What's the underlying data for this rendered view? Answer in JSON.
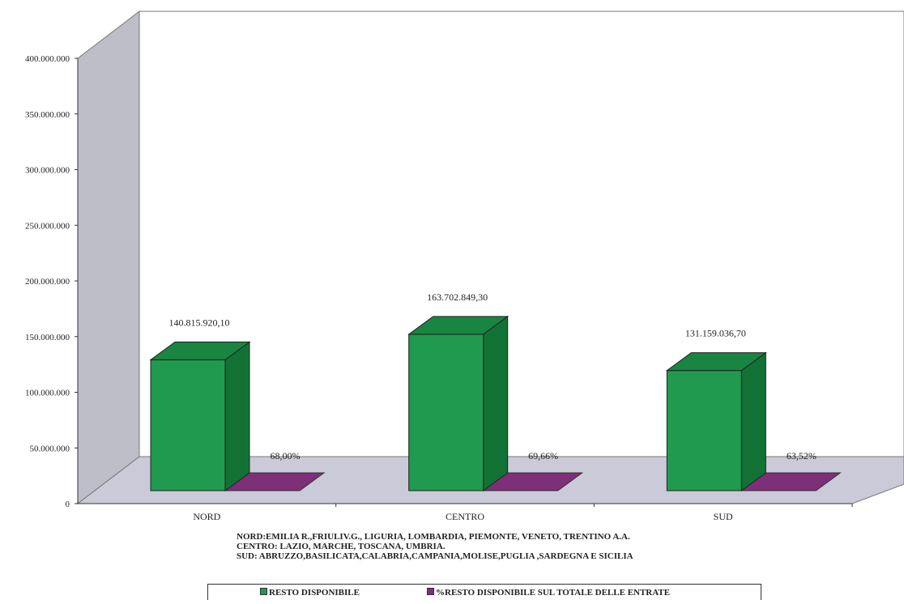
{
  "chart_data": {
    "type": "bar",
    "categories": [
      "NORD",
      "CENTRO",
      "SUD"
    ],
    "series": [
      {
        "name": "RESTO DISPONIBILE",
        "color": "#1f9a4e",
        "values": [
          140815920.1,
          163702849.3,
          131159036.7
        ],
        "labels": [
          "140.815.920,10",
          "163.702.849,30",
          "131.159.036,70"
        ]
      },
      {
        "name": "%RESTO DISPONIBILE SUL TOTALE DELLE ENTRATE",
        "color": "#7d2f78",
        "values": [
          68.0,
          69.66,
          63.52
        ],
        "labels": [
          "68,00%",
          "69,66%",
          "63,52%"
        ]
      }
    ],
    "ylim": [
      0,
      400000000
    ],
    "yticks": [
      {
        "value": 0,
        "label": "0"
      },
      {
        "value": 50000000,
        "label": "50.000.000"
      },
      {
        "value": 100000000,
        "label": "100.000.000"
      },
      {
        "value": 150000000,
        "label": "150.000.000"
      },
      {
        "value": 200000000,
        "label": "200.000.000"
      },
      {
        "value": 250000000,
        "label": "250.000.000"
      },
      {
        "value": 300000000,
        "label": "300.000.000"
      },
      {
        "value": 350000000,
        "label": "350.000.000"
      },
      {
        "value": 400000000,
        "label": "400.000.000"
      }
    ],
    "grid": false,
    "legend_position": "bottom",
    "notes": [
      "NORD:EMILIA R.,FRIULIV.G., LIGURIA, LOMBARDIA, PIEMONTE, VENETO, TRENTINO A.A.",
      "CENTRO: LAZIO, MARCHE, TOSCANA, UMBRIA.",
      "SUD: ABRUZZO,BASILICATA,CALABRIA,CAMPANIA,MOLISE,PUGLIA ,SARDEGNA E SICILIA"
    ]
  },
  "colors": {
    "left_wall": "#bdbec8",
    "floor": "#cbcad8",
    "bar_front": "#1f9a4e",
    "bar_top": "#188541",
    "bar_side": "#127236",
    "pct_plate": "#7d2f78"
  }
}
